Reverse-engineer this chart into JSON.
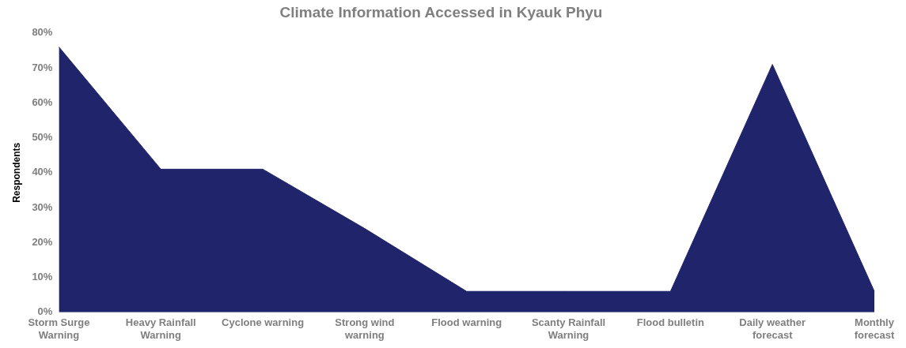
{
  "chart_data": {
    "type": "area",
    "title": "Climate Information Accessed in Kyauk Phyu",
    "ylabel": "Respondents",
    "categories": [
      "Storm Surge Warning",
      "Heavy Rainfall Warning",
      "Cyclone warning",
      "Strong wind warning",
      "Flood warning",
      "Scanty Rainfall Warning",
      "Flood bulletin",
      "Daily weather forecast",
      "Monthly forecast"
    ],
    "values": [
      76,
      41,
      41,
      24,
      6,
      6,
      6,
      71,
      6
    ],
    "color": "#1f246b",
    "ylim": [
      0,
      80
    ],
    "yticks": [
      {
        "value": 0,
        "label": "0%"
      },
      {
        "value": 10,
        "label": "10%"
      },
      {
        "value": 20,
        "label": "20%"
      },
      {
        "value": 30,
        "label": "30%"
      },
      {
        "value": 40,
        "label": "40%"
      },
      {
        "value": 50,
        "label": "50%"
      },
      {
        "value": 60,
        "label": "60%"
      },
      {
        "value": 70,
        "label": "70%"
      },
      {
        "value": 80,
        "label": "80%"
      }
    ],
    "grid": false,
    "legend": false
  }
}
